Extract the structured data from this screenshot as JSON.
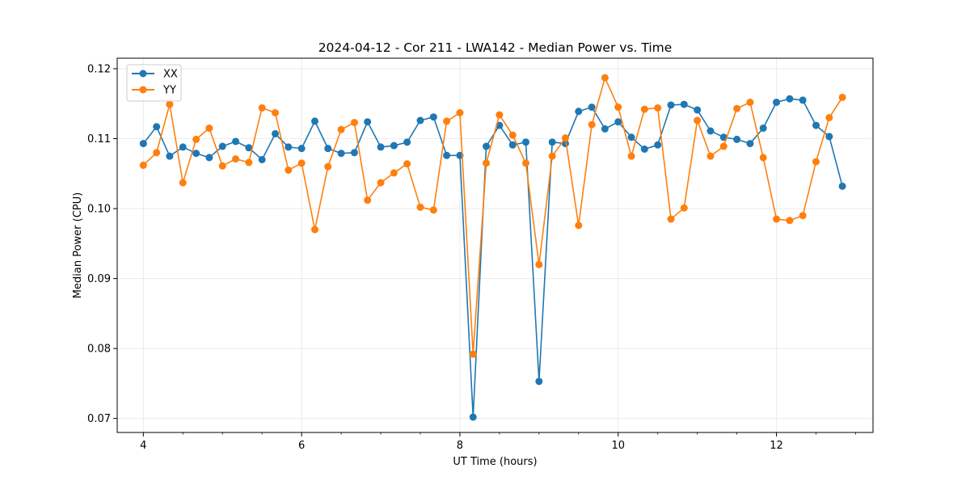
{
  "chart_data": {
    "type": "line",
    "title": "2024-04-12 - Cor 211 - LWA142 - Median Power vs. Time",
    "xlabel": "UT Time (hours)",
    "ylabel": "Median Power (CPU)",
    "xlim": [
      3.67,
      13.22
    ],
    "ylim": [
      0.068,
      0.1215
    ],
    "xticks": [
      4,
      6,
      8,
      10,
      12
    ],
    "xtick_labels": [
      "4",
      "6",
      "8",
      "10",
      "12"
    ],
    "yticks": [
      0.07,
      0.08,
      0.09,
      0.1,
      0.11,
      0.12
    ],
    "ytick_labels": [
      "0.07",
      "0.08",
      "0.09",
      "0.10",
      "0.11",
      "0.12"
    ],
    "grid": true,
    "legend_position": "top-left",
    "x": [
      4.0,
      4.167,
      4.333,
      4.5,
      4.667,
      4.833,
      5.0,
      5.167,
      5.333,
      5.5,
      5.667,
      5.833,
      6.0,
      6.167,
      6.333,
      6.5,
      6.667,
      6.833,
      7.0,
      7.167,
      7.333,
      7.5,
      7.667,
      7.833,
      8.0,
      8.167,
      8.333,
      8.5,
      8.667,
      8.833,
      9.0,
      9.167,
      9.333,
      9.5,
      9.667,
      9.833,
      10.0,
      10.167,
      10.333,
      10.5,
      10.667,
      10.833,
      11.0,
      11.167,
      11.333,
      11.5,
      11.667,
      11.833,
      12.0,
      12.167,
      12.333,
      12.5,
      12.667,
      12.833
    ],
    "series": [
      {
        "name": "XX",
        "color": "#1f77b4",
        "values": [
          0.1093,
          0.1117,
          0.1075,
          0.1088,
          0.1079,
          0.1073,
          0.1089,
          0.1096,
          0.1087,
          0.107,
          0.1107,
          0.1088,
          0.1086,
          0.1125,
          0.1086,
          0.1079,
          0.108,
          0.1124,
          0.1088,
          0.109,
          0.1095,
          0.1126,
          0.1131,
          0.1076,
          0.1076,
          0.0702,
          0.1089,
          0.1119,
          0.1091,
          0.1095,
          0.0753,
          0.1095,
          0.1093,
          0.1139,
          0.1145,
          0.1114,
          0.1124,
          0.1102,
          0.1085,
          0.1091,
          0.1148,
          0.1149,
          0.1141,
          0.1111,
          0.1102,
          0.1099,
          0.1093,
          0.1115,
          0.1152,
          0.1157,
          0.1155,
          0.1119,
          0.1103,
          0.1032
        ]
      },
      {
        "name": "YY",
        "color": "#ff7f0e",
        "values": [
          0.1062,
          0.108,
          0.1149,
          0.1037,
          0.1099,
          0.1115,
          0.1061,
          0.1071,
          0.1066,
          0.1144,
          0.1137,
          0.1055,
          0.1065,
          0.097,
          0.106,
          0.1113,
          0.1123,
          0.1012,
          0.1037,
          0.1051,
          0.1064,
          0.1002,
          0.0998,
          0.1125,
          0.1137,
          0.0792,
          0.1065,
          0.1134,
          0.1105,
          0.1065,
          0.092,
          0.1075,
          0.1101,
          0.0976,
          0.112,
          0.1187,
          0.1145,
          0.1075,
          0.1142,
          0.1144,
          0.0985,
          0.1001,
          0.1126,
          0.1075,
          0.1089,
          0.1143,
          0.1152,
          0.1073,
          0.0985,
          0.0983,
          0.099,
          0.1067,
          0.113,
          0.1159
        ]
      }
    ]
  }
}
